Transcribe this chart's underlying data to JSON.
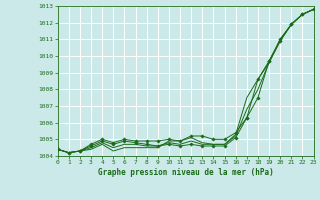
{
  "title": "Graphe pression niveau de la mer (hPa)",
  "background_color": "#cce9e9",
  "grid_color": "#ffffff",
  "line_color": "#1a6b1a",
  "ylim": [
    1004,
    1013
  ],
  "xlim": [
    0,
    23
  ],
  "yticks": [
    1004,
    1005,
    1006,
    1007,
    1008,
    1009,
    1010,
    1011,
    1012,
    1013
  ],
  "xticks": [
    0,
    1,
    2,
    3,
    4,
    5,
    6,
    7,
    8,
    9,
    10,
    11,
    12,
    13,
    14,
    15,
    16,
    17,
    18,
    19,
    20,
    21,
    22,
    23
  ],
  "series_with_markers": [
    [
      1004.4,
      1004.2,
      1004.3,
      1004.7,
      1005.0,
      1004.8,
      1005.0,
      1004.9,
      1004.9,
      1004.9,
      1005.0,
      1004.9,
      1005.2,
      1005.2,
      1005.0,
      1005.0,
      1005.4,
      1006.3,
      1007.5,
      1009.7,
      1011.0,
      1011.9,
      1012.5,
      1012.8
    ],
    [
      1004.4,
      1004.2,
      1004.3,
      1004.6,
      1004.9,
      1004.7,
      1004.9,
      1004.8,
      1004.7,
      1004.6,
      1004.7,
      1004.6,
      1004.7,
      1004.6,
      1004.6,
      1004.6,
      1005.1,
      1006.3,
      1008.6,
      1009.7,
      1010.9,
      1011.9,
      1012.5,
      1012.8
    ]
  ],
  "series_no_markers": [
    [
      1004.4,
      1004.2,
      1004.3,
      1004.4,
      1004.7,
      1004.3,
      1004.5,
      1004.5,
      1004.5,
      1004.5,
      1004.9,
      1004.9,
      1005.1,
      1004.8,
      1004.7,
      1004.7,
      1005.3,
      1007.5,
      1008.6,
      1009.6,
      1011.0,
      1011.9,
      1012.5,
      1012.8
    ],
    [
      1004.4,
      1004.2,
      1004.3,
      1004.5,
      1004.8,
      1004.5,
      1004.7,
      1004.7,
      1004.6,
      1004.6,
      1004.8,
      1004.7,
      1004.9,
      1004.7,
      1004.7,
      1004.7,
      1005.2,
      1006.8,
      1008.0,
      1009.6,
      1010.9,
      1011.9,
      1012.5,
      1012.8
    ]
  ],
  "figsize": [
    3.2,
    2.0
  ],
  "dpi": 100
}
